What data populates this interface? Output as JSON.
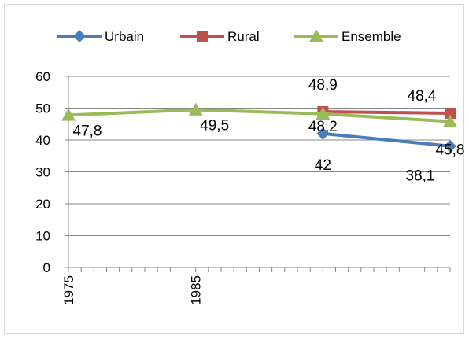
{
  "chart_data": {
    "type": "line",
    "title": "",
    "xlabel": "",
    "ylabel": "",
    "x_ticks": [
      "1975",
      "1985"
    ],
    "x_range": [
      1975,
      2005
    ],
    "ylim": [
      0,
      60
    ],
    "y_ticks": [
      0,
      10,
      20,
      30,
      40,
      50,
      60
    ],
    "grid": "horizontal",
    "legend_position": "top",
    "series": [
      {
        "name": "Urbain",
        "color": "#4a7ebb",
        "marker": "diamond",
        "points": [
          {
            "x": 1995,
            "y": 42,
            "label": "42"
          },
          {
            "x": 2005,
            "y": 38.1,
            "label": "38,1"
          }
        ]
      },
      {
        "name": "Rural",
        "color": "#c0504d",
        "marker": "square",
        "points": [
          {
            "x": 1995,
            "y": 48.9,
            "label": "48,9"
          },
          {
            "x": 2005,
            "y": 48.4,
            "label": "48,4"
          }
        ]
      },
      {
        "name": "Ensemble",
        "color": "#9bbb59",
        "marker": "triangle",
        "points": [
          {
            "x": 1975,
            "y": 47.8,
            "label": "47,8"
          },
          {
            "x": 1985,
            "y": 49.5,
            "label": "49,5"
          },
          {
            "x": 1995,
            "y": 48.2,
            "label": "48,2"
          },
          {
            "x": 2005,
            "y": 45.8,
            "label": "45,8"
          }
        ]
      }
    ]
  }
}
